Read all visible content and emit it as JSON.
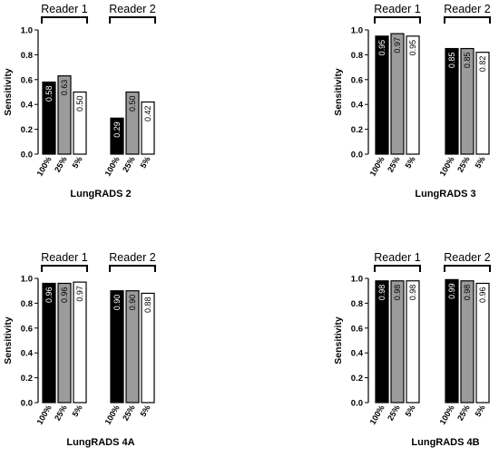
{
  "colors": {
    "series_fills": [
      "#000000",
      "#9b9b9b",
      "#ffffff"
    ],
    "stroke": "#000000",
    "label_on_dark": "#ffffff",
    "label_on_light": "#000000"
  },
  "chart_data": [
    {
      "type": "bar",
      "title": "LungRADS 2",
      "ylabel": "Sensitivity",
      "ylim": [
        0,
        1.0
      ],
      "yticks": [
        "0.0",
        "0.2",
        "0.4",
        "0.6",
        "0.8",
        "1.0"
      ],
      "groups": [
        "Reader 1",
        "Reader 2"
      ],
      "categories": [
        "100%",
        "25%",
        "5%"
      ],
      "series": [
        {
          "values": [
            0.58,
            0.63,
            0.5
          ],
          "labels": [
            "0.58",
            "0.63",
            "0.50"
          ]
        },
        {
          "values": [
            0.29,
            0.5,
            0.42
          ],
          "labels": [
            "0.29",
            "0.50",
            "0.42"
          ]
        }
      ]
    },
    {
      "type": "bar",
      "title": "LungRADS 3",
      "ylabel": "Sensitivity",
      "ylim": [
        0,
        1.0
      ],
      "yticks": [
        "0.0",
        "0.2",
        "0.4",
        "0.6",
        "0.8",
        "1.0"
      ],
      "groups": [
        "Reader 1",
        "Reader 2"
      ],
      "categories": [
        "100%",
        "25%",
        "5%"
      ],
      "series": [
        {
          "values": [
            0.95,
            0.97,
            0.95
          ],
          "labels": [
            "0.95",
            "0.97",
            "0.95"
          ]
        },
        {
          "values": [
            0.85,
            0.85,
            0.82
          ],
          "labels": [
            "0.85",
            "0.85",
            "0.82"
          ]
        }
      ]
    },
    {
      "type": "bar",
      "title": "LungRADS 4A",
      "ylabel": "Sensitivity",
      "ylim": [
        0,
        1.0
      ],
      "yticks": [
        "0.0",
        "0.2",
        "0.4",
        "0.6",
        "0.8",
        "1.0"
      ],
      "groups": [
        "Reader 1",
        "Reader 2"
      ],
      "categories": [
        "100%",
        "25%",
        "5%"
      ],
      "series": [
        {
          "values": [
            0.96,
            0.96,
            0.97
          ],
          "labels": [
            "0.96",
            "0.96",
            "0.97"
          ]
        },
        {
          "values": [
            0.9,
            0.9,
            0.88
          ],
          "labels": [
            "0.90",
            "0.90",
            "0.88"
          ]
        }
      ]
    },
    {
      "type": "bar",
      "title": "LungRADS 4B",
      "ylabel": "Sensitivity",
      "ylim": [
        0,
        1.0
      ],
      "yticks": [
        "0.0",
        "0.2",
        "0.4",
        "0.6",
        "0.8",
        "1.0"
      ],
      "groups": [
        "Reader 1",
        "Reader 2"
      ],
      "categories": [
        "100%",
        "25%",
        "5%"
      ],
      "series": [
        {
          "values": [
            0.98,
            0.98,
            0.98
          ],
          "labels": [
            "0.98",
            "0.98",
            "0.98"
          ]
        },
        {
          "values": [
            0.99,
            0.98,
            0.96
          ],
          "labels": [
            "0.99",
            "0.98",
            "0.96"
          ]
        }
      ]
    }
  ]
}
